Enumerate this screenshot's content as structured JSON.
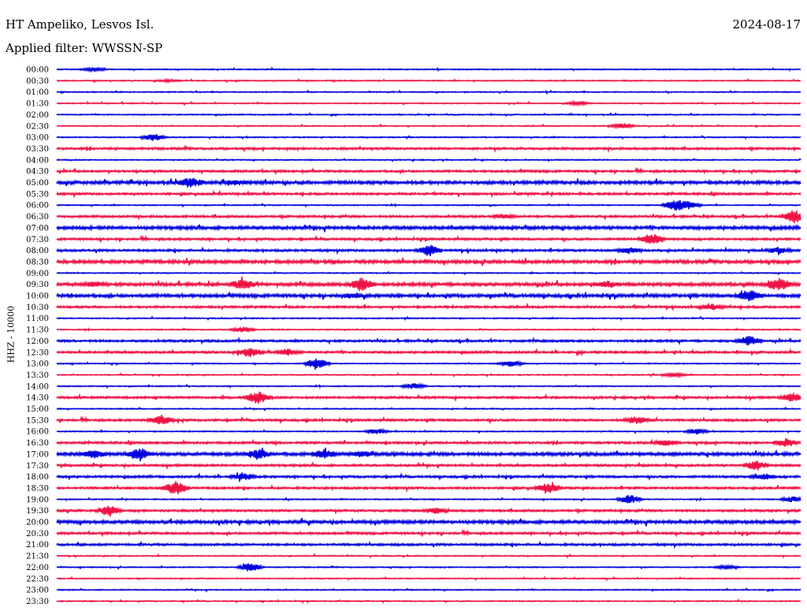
{
  "header": {
    "station": "HT Ampeliko, Lesvos Isl.",
    "date": "2024-08-17",
    "filter": "Applied filter: WWSSN-SP"
  },
  "chart_data": {
    "type": "line",
    "ylabel": "HHZ - 10000",
    "colors": [
      "#0000dd",
      "#ee1144"
    ],
    "rows": [
      "00:00",
      "00:30",
      "01:00",
      "01:30",
      "02:00",
      "02:30",
      "03:00",
      "03:30",
      "04:00",
      "04:30",
      "05:00",
      "05:30",
      "06:00",
      "06:30",
      "07:00",
      "07:30",
      "08:00",
      "08:30",
      "09:00",
      "09:30",
      "10:00",
      "10:30",
      "11:00",
      "11:30",
      "12:00",
      "12:30",
      "13:00",
      "13:30",
      "14:00",
      "14:30",
      "15:00",
      "15:30",
      "16:00",
      "16:30",
      "17:00",
      "17:30",
      "18:00",
      "18:30",
      "19:00",
      "19:30",
      "20:00",
      "20:30",
      "21:00",
      "21:30",
      "22:00",
      "22:30",
      "23:00",
      "23:30"
    ],
    "noise_level": [
      1,
      1,
      1,
      1,
      1,
      1,
      1,
      2,
      1,
      2,
      3,
      2,
      1,
      2,
      3,
      2,
      2,
      3,
      1,
      3,
      3,
      2,
      1,
      1,
      2,
      2,
      1,
      1,
      1,
      2,
      1,
      2,
      1,
      2,
      3,
      2,
      2,
      2,
      1,
      2,
      3,
      2,
      2,
      1,
      1,
      1,
      1,
      1
    ],
    "bursts": [
      [
        0,
        0.05,
        2
      ],
      [
        1,
        0.15,
        1
      ],
      [
        3,
        0.7,
        2
      ],
      [
        5,
        0.76,
        3
      ],
      [
        6,
        0.13,
        4
      ],
      [
        10,
        0.18,
        5
      ],
      [
        10,
        0.24,
        2
      ],
      [
        12,
        0.83,
        6
      ],
      [
        12,
        0.85,
        4
      ],
      [
        13,
        0.99,
        7
      ],
      [
        13,
        0.6,
        2
      ],
      [
        15,
        0.8,
        6
      ],
      [
        16,
        0.5,
        6
      ],
      [
        16,
        0.77,
        3
      ],
      [
        16,
        0.97,
        3
      ],
      [
        19,
        0.25,
        5
      ],
      [
        19,
        0.41,
        8
      ],
      [
        19,
        0.74,
        3
      ],
      [
        19,
        0.97,
        6
      ],
      [
        19,
        0.05,
        2
      ],
      [
        20,
        0.93,
        6
      ],
      [
        20,
        0.4,
        2
      ],
      [
        21,
        0.88,
        3
      ],
      [
        23,
        0.25,
        3
      ],
      [
        24,
        0.93,
        5
      ],
      [
        25,
        0.26,
        5
      ],
      [
        25,
        0.31,
        3
      ],
      [
        26,
        0.35,
        7
      ],
      [
        26,
        0.61,
        3
      ],
      [
        27,
        0.83,
        2
      ],
      [
        28,
        0.48,
        3
      ],
      [
        29,
        0.27,
        7
      ],
      [
        29,
        0.99,
        5
      ],
      [
        31,
        0.14,
        5
      ],
      [
        31,
        0.78,
        4
      ],
      [
        32,
        0.43,
        3
      ],
      [
        32,
        0.86,
        3
      ],
      [
        33,
        0.82,
        3
      ],
      [
        33,
        0.98,
        4
      ],
      [
        34,
        0.05,
        4
      ],
      [
        34,
        0.11,
        6
      ],
      [
        34,
        0.27,
        5
      ],
      [
        34,
        0.36,
        4
      ],
      [
        34,
        0.41,
        3
      ],
      [
        35,
        0.94,
        5
      ],
      [
        36,
        0.25,
        4
      ],
      [
        36,
        0.95,
        3
      ],
      [
        37,
        0.16,
        7
      ],
      [
        37,
        0.66,
        6
      ],
      [
        38,
        0.77,
        5
      ],
      [
        38,
        0.99,
        3
      ],
      [
        39,
        0.07,
        5
      ],
      [
        39,
        0.51,
        3
      ],
      [
        44,
        0.26,
        5
      ],
      [
        44,
        0.9,
        2
      ]
    ]
  }
}
